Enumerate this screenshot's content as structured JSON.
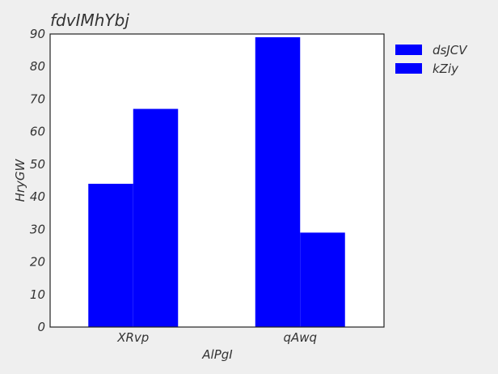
{
  "chart_data": {
    "type": "bar",
    "title": "fdvIMhYbj",
    "xlabel": "AlPgI",
    "ylabel": "HryGW",
    "categories": [
      "XRvp",
      "qAwq"
    ],
    "series": [
      {
        "name": "dsJCV",
        "values": [
          44,
          89
        ]
      },
      {
        "name": "kZiy",
        "values": [
          67,
          29
        ]
      }
    ],
    "ylim": [
      0,
      90
    ],
    "yticks": [
      0,
      10,
      20,
      30,
      40,
      50,
      60,
      70,
      80,
      90
    ],
    "grid": false,
    "legend_position": "outside-top-right",
    "colors": {
      "bar": "#0000ff",
      "axes_bg": "#ffffff",
      "figure_bg": "#efefef"
    }
  }
}
